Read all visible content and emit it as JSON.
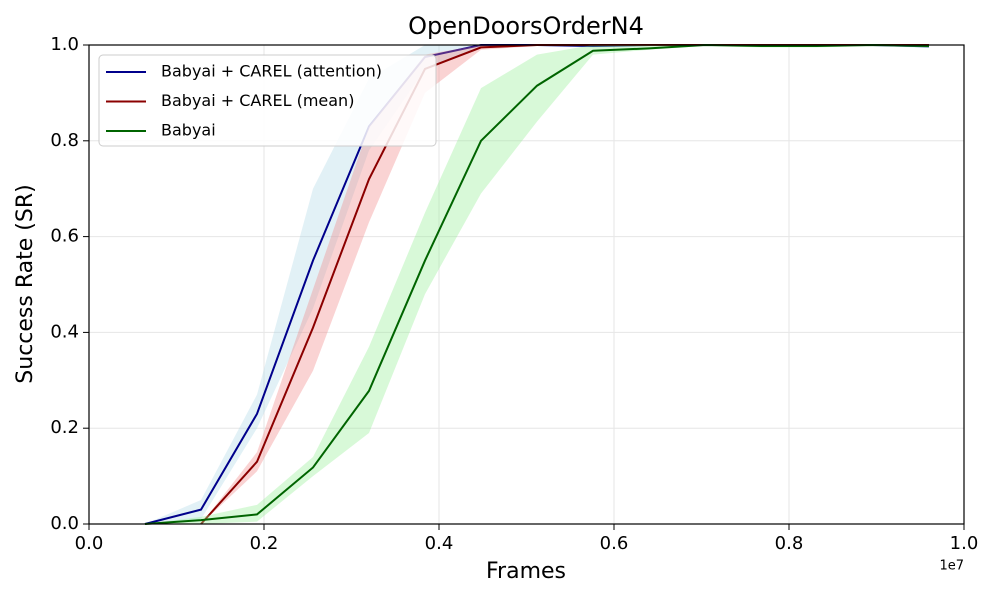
{
  "chart_data": {
    "type": "line",
    "title": "OpenDoorsOrderN4",
    "xlabel": "Frames",
    "ylabel": "Success Rate (SR)",
    "x_offset_label": "1e7",
    "x": [
      640000,
      1280000,
      1920000,
      2560000,
      3200000,
      3840000,
      4480000,
      5120000,
      5760000,
      6400000,
      7040000,
      7680000,
      8320000,
      8960000,
      9600000
    ],
    "series": [
      {
        "name": "Babyai + CAREL (attention)",
        "color": "#00008b",
        "band_color": "#add8e6",
        "values": [
          0,
          0.03,
          0.23,
          0.55,
          0.83,
          0.975,
          1.0,
          1.0,
          0.998,
          1.0,
          1.0,
          1.0,
          1.0,
          1.0,
          0.997
        ],
        "lower": [
          0,
          0.01,
          0.2,
          0.45,
          0.78,
          0.95,
          0.995,
          0.998,
          0.995,
          0.998,
          1.0,
          0.998,
          0.998,
          0.998,
          0.994
        ],
        "upper": [
          0,
          0.05,
          0.27,
          0.7,
          0.93,
          1.0,
          1.0,
          1.0,
          1.0,
          1.0,
          1.0,
          1.0,
          1.0,
          1.0,
          1.0
        ]
      },
      {
        "name": "Babyai + CAREL (mean)",
        "color": "#8b0000",
        "band_color": "#f08080",
        "values": [
          null,
          0,
          0.13,
          0.41,
          0.72,
          0.95,
          0.995,
          1.0,
          1.0,
          1.0,
          1.0,
          1.0,
          1.0,
          1.0,
          1.0
        ],
        "lower": [
          null,
          0,
          0.11,
          0.32,
          0.63,
          0.9,
          0.99,
          0.998,
          0.998,
          0.998,
          1.0,
          0.998,
          0.998,
          0.998,
          0.998
        ],
        "upper": [
          null,
          0,
          0.15,
          0.49,
          0.83,
          0.98,
          1.0,
          1.0,
          1.0,
          1.0,
          1.0,
          1.0,
          1.0,
          1.0,
          1.0
        ]
      },
      {
        "name": "Babyai",
        "color": "#006400",
        "band_color": "#90ee90",
        "values": [
          0,
          0.008,
          0.02,
          0.118,
          0.278,
          0.55,
          0.8,
          0.915,
          0.988,
          0.993,
          1.0,
          0.998,
          0.998,
          1.0,
          0.998
        ],
        "lower": [
          0,
          0,
          0.005,
          0.1,
          0.19,
          0.48,
          0.69,
          0.84,
          0.98,
          0.99,
          0.998,
          0.995,
          0.995,
          0.998,
          0.995
        ],
        "upper": [
          0,
          0.015,
          0.04,
          0.14,
          0.37,
          0.65,
          0.91,
          0.98,
          1.0,
          1.0,
          1.0,
          1.0,
          1.0,
          1.0,
          1.0
        ]
      }
    ],
    "xlim": [
      0,
      10000000
    ],
    "ylim": [
      0,
      1
    ],
    "xticks": [
      {
        "value": 0,
        "label": "0.0"
      },
      {
        "value": 2000000,
        "label": "0.2"
      },
      {
        "value": 4000000,
        "label": "0.4"
      },
      {
        "value": 6000000,
        "label": "0.6"
      },
      {
        "value": 8000000,
        "label": "0.8"
      },
      {
        "value": 10000000,
        "label": "1.0"
      }
    ],
    "yticks": [
      {
        "value": 0,
        "label": "0.0"
      },
      0.2,
      0.4,
      0.6,
      0.8,
      {
        "value": 1,
        "label": "1.0"
      }
    ],
    "grid": true,
    "legend": "upper left"
  }
}
